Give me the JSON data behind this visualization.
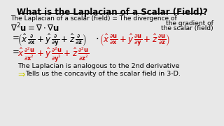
{
  "title": "What is the Laplacian of a Scalar (Field)?",
  "bg_color": "#e8e8e8",
  "black": "#000000",
  "red": "#cc0000",
  "yellow_arrow": "#cccc00",
  "line1": "The Laplacian of a scalar (field) = The divergence of",
  "line1b": "the gradient of",
  "line1c": "the scalar (field)",
  "bottom1": "The Laplacian is analogous to the 2nd derivative",
  "bottom2": "Tells us the concavity of the scalar field in 3-D."
}
